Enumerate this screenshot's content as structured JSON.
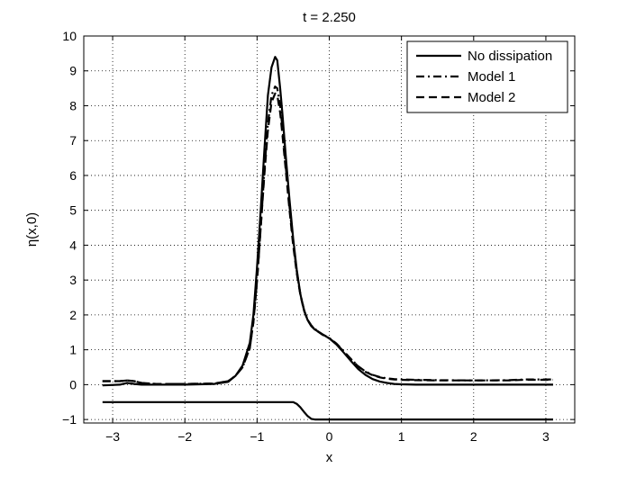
{
  "chart_data": {
    "type": "line",
    "title": "t = 2.250",
    "xlabel": "x",
    "ylabel": "η(x,0)",
    "xlim": [
      -3.4,
      3.4
    ],
    "ylim": [
      -1.1,
      10
    ],
    "xticks": [
      -3,
      -2,
      -1,
      0,
      1,
      2,
      3
    ],
    "xtick_labels": [
      "−3",
      "−2",
      "−1",
      "0",
      "1",
      "2",
      "3"
    ],
    "yticks": [
      -1,
      0,
      1,
      2,
      3,
      4,
      5,
      6,
      7,
      8,
      9,
      10
    ],
    "ytick_labels": [
      "−1",
      "0",
      "1",
      "2",
      "3",
      "4",
      "5",
      "6",
      "7",
      "8",
      "9",
      "10"
    ],
    "grid": true,
    "legend_position": "top-right",
    "series": [
      {
        "name": "No dissipation",
        "style": "solid",
        "x": [
          -3.14,
          -2.9,
          -2.8,
          -2.7,
          -2.6,
          -2.4,
          -2.0,
          -1.6,
          -1.4,
          -1.3,
          -1.2,
          -1.1,
          -1.05,
          -1.0,
          -0.95,
          -0.9,
          -0.85,
          -0.8,
          -0.75,
          -0.72,
          -0.68,
          -0.65,
          -0.6,
          -0.55,
          -0.5,
          -0.45,
          -0.4,
          -0.35,
          -0.3,
          -0.25,
          -0.2,
          -0.15,
          -0.1,
          0.0,
          0.1,
          0.2,
          0.3,
          0.4,
          0.5,
          0.6,
          0.7,
          0.8,
          0.9,
          1.0,
          1.2,
          1.5,
          2.0,
          2.5,
          3.1
        ],
        "y": [
          -0.02,
          0.0,
          0.05,
          0.02,
          0.0,
          0.0,
          0.0,
          0.02,
          0.08,
          0.25,
          0.55,
          1.2,
          2.0,
          3.4,
          5.0,
          6.7,
          8.3,
          9.1,
          9.4,
          9.3,
          8.5,
          7.8,
          6.5,
          5.3,
          4.2,
          3.3,
          2.6,
          2.15,
          1.85,
          1.68,
          1.58,
          1.52,
          1.45,
          1.33,
          1.15,
          0.92,
          0.68,
          0.45,
          0.28,
          0.16,
          0.09,
          0.05,
          0.02,
          0.01,
          0.0,
          0.0,
          0.0,
          0.0,
          0.0
        ]
      },
      {
        "name": "Model 1",
        "style": "dashdot",
        "x": [
          -3.14,
          -2.9,
          -2.8,
          -2.7,
          -2.6,
          -2.4,
          -2.0,
          -1.6,
          -1.4,
          -1.3,
          -1.2,
          -1.1,
          -1.05,
          -1.0,
          -0.95,
          -0.9,
          -0.85,
          -0.8,
          -0.75,
          -0.72,
          -0.68,
          -0.65,
          -0.6,
          -0.55,
          -0.5,
          -0.45,
          -0.4,
          -0.35,
          -0.3,
          -0.25,
          -0.2,
          -0.15,
          -0.1,
          0.0,
          0.1,
          0.2,
          0.3,
          0.4,
          0.5,
          0.6,
          0.7,
          0.8,
          0.9,
          1.0,
          1.2,
          1.5,
          2.0,
          2.5,
          2.7,
          3.1
        ],
        "y": [
          0.1,
          0.1,
          0.12,
          0.1,
          0.05,
          0.02,
          0.02,
          0.03,
          0.1,
          0.25,
          0.5,
          1.05,
          1.8,
          3.0,
          4.5,
          6.1,
          7.5,
          8.3,
          8.55,
          8.5,
          8.0,
          7.4,
          6.2,
          5.1,
          4.1,
          3.25,
          2.6,
          2.15,
          1.86,
          1.7,
          1.6,
          1.52,
          1.45,
          1.34,
          1.18,
          0.96,
          0.74,
          0.53,
          0.38,
          0.28,
          0.22,
          0.18,
          0.16,
          0.15,
          0.14,
          0.13,
          0.12,
          0.13,
          0.15,
          0.15
        ]
      },
      {
        "name": "Model 2",
        "style": "dashed",
        "x": [
          -3.14,
          -2.9,
          -2.8,
          -2.7,
          -2.6,
          -2.4,
          -2.0,
          -1.6,
          -1.4,
          -1.3,
          -1.2,
          -1.1,
          -1.05,
          -1.0,
          -0.95,
          -0.9,
          -0.85,
          -0.8,
          -0.75,
          -0.72,
          -0.68,
          -0.65,
          -0.6,
          -0.55,
          -0.5,
          -0.45,
          -0.4,
          -0.35,
          -0.3,
          -0.25,
          -0.2,
          -0.15,
          -0.1,
          0.0,
          0.1,
          0.2,
          0.3,
          0.4,
          0.5,
          0.6,
          0.7,
          0.8,
          0.9,
          1.0,
          1.2,
          1.5,
          2.0,
          2.5,
          2.7,
          3.1
        ],
        "y": [
          0.1,
          0.1,
          0.12,
          0.1,
          0.05,
          0.02,
          0.02,
          0.03,
          0.1,
          0.25,
          0.5,
          1.05,
          1.8,
          3.0,
          4.5,
          6.0,
          7.3,
          8.1,
          8.35,
          8.3,
          7.8,
          7.2,
          6.1,
          5.0,
          4.0,
          3.2,
          2.58,
          2.13,
          1.85,
          1.69,
          1.59,
          1.51,
          1.44,
          1.33,
          1.17,
          0.95,
          0.73,
          0.52,
          0.37,
          0.27,
          0.21,
          0.17,
          0.15,
          0.14,
          0.13,
          0.12,
          0.12,
          0.12,
          0.14,
          0.14
        ]
      },
      {
        "style": "solid",
        "x": [
          -3.14,
          -0.5,
          -0.45,
          -0.4,
          -0.35,
          -0.3,
          -0.25,
          -0.2,
          3.1
        ],
        "y": [
          -0.5,
          -0.5,
          -0.55,
          -0.65,
          -0.78,
          -0.9,
          -0.98,
          -1.0,
          -1.0
        ]
      }
    ]
  }
}
